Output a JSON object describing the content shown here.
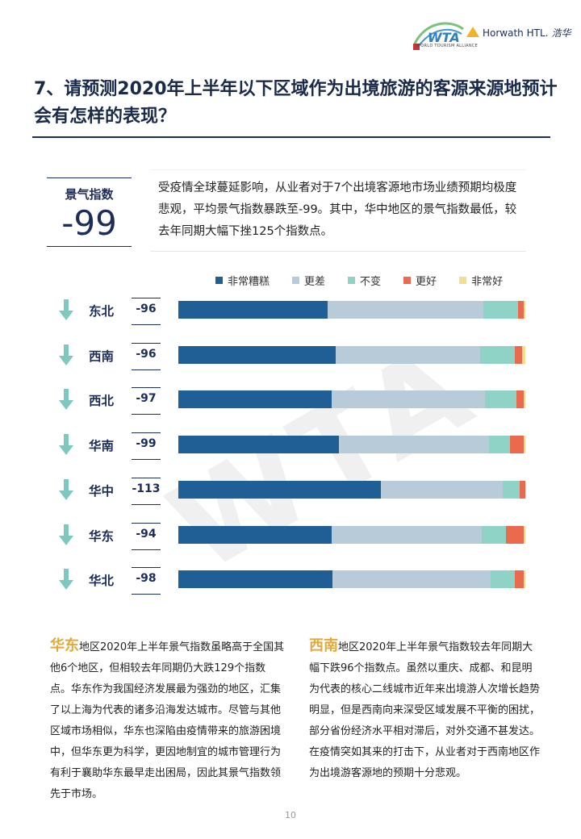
{
  "header": {
    "wta_logo_text": "WTA",
    "wta_caption": "WORLD TOURISM ALLIANCE",
    "horwath_text": "Horwath HTL.",
    "horwath_cn": "浩华"
  },
  "title": "7、请预测2020年上半年以下区域作为出境旅游的客源来源地预计会有怎样的表现？",
  "index_box": {
    "label": "景气指数",
    "value": "-99"
  },
  "summary": "受疫情全球蔓延影响，从业者对于7个出境客源地市场业绩预期均极度悲观，平均景气指数暴跌至-99。其中，华中地区的景气指数最低，较去年同期大幅下挫125个指数点。",
  "colors": {
    "very_bad": "#1f5f95",
    "worse": "#b7ccd8",
    "same": "#8fd3c7",
    "better": "#e96a4d",
    "very_good": "#f5de8c",
    "arrow": "#7fc8c0"
  },
  "legend": [
    {
      "label": "非常糟糕",
      "color": "#1f5f95"
    },
    {
      "label": "更差",
      "color": "#b7ccd8"
    },
    {
      "label": "不变",
      "color": "#8fd3c7"
    },
    {
      "label": "更好",
      "color": "#e96a4d"
    },
    {
      "label": "非常好",
      "color": "#f5de8c"
    }
  ],
  "chart_data": {
    "type": "bar",
    "orientation": "horizontal-stacked-100",
    "categories": [
      "东北",
      "西南",
      "西北",
      "华南",
      "华中",
      "华东",
      "华北"
    ],
    "index_values": [
      "-96",
      "-96",
      "-97",
      "-99",
      "-113",
      "-94",
      "-98"
    ],
    "series": [
      {
        "name": "非常糟糕",
        "values": [
          43,
          45,
          44,
          46,
          58,
          44,
          44
        ]
      },
      {
        "name": "更差",
        "values": [
          45,
          41,
          44,
          43,
          35,
          43,
          45
        ]
      },
      {
        "name": "不变",
        "values": [
          10,
          10,
          9,
          6,
          5,
          7,
          7
        ]
      },
      {
        "name": "更好",
        "values": [
          1.5,
          2,
          2,
          4,
          1.5,
          5,
          2.5
        ]
      },
      {
        "name": "非常好",
        "values": [
          0.5,
          1,
          0.5,
          0.5,
          0,
          0.5,
          0.5
        ]
      }
    ]
  },
  "para1": {
    "lead": "华东",
    "text": "地区2020年上半年景气指数虽略高于全国其他6个地区，但相较去年同期仍大跌129个指数点。华东作为我国经济发展最为强劲的地区，汇集了以上海为代表的诸多沿海发达城市。尽管与其他区域市场相似，华东也深陷由疫情带来的旅游困境中，但华东更为科学，更因地制宜的城市管理行为有利于襄助华东最早走出困局，因此其景气指数领先于市场。"
  },
  "para2": {
    "lead": "西南",
    "text": "地区2020年上半年景气指数较去年同期大幅下跌96个指数点。虽然以重庆、成都、和昆明为代表的核心二线城市近年来出境游人次增长趋势明显，但是西南向来深受区域发展不平衡的困扰，部分省份经济水平相对滞后，对外交通不甚发达。在疫情突如其来的打击下，从业者对于西南地区作为出境游客源地的预期十分悲观。"
  },
  "page_number": "10"
}
